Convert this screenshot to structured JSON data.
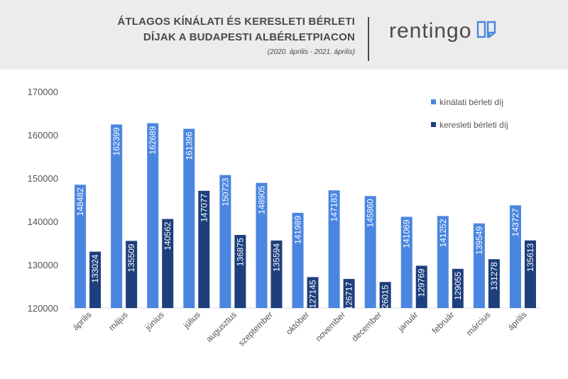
{
  "header": {
    "title_line1": "ÁTLAGOS KÍNÁLATI ÉS KERESLETI BÉRLETI",
    "title_line2": "DÍJAK A BUDAPESTI ALBÉRLETPIACON",
    "subtitle": "(2020. április - 2021. április)",
    "logo_text": "rentingo",
    "logo_icon": "book-icon"
  },
  "colors": {
    "offer": "#4a86e0",
    "demand": "#1d3f7d",
    "axis_text": "#555555",
    "header_bg": "#ececec"
  },
  "chart_data": {
    "type": "bar",
    "categories": [
      "április",
      "május",
      "június",
      "július",
      "augusztus",
      "szeptember",
      "október",
      "november",
      "december",
      "január",
      "február",
      "március",
      "április"
    ],
    "series": [
      {
        "name": "kínálati bérleti díj",
        "color": "#4a86e0",
        "values": [
          148482,
          162399,
          162689,
          161396,
          150723,
          148905,
          141989,
          147183,
          145860,
          141069,
          141252,
          139549,
          143727
        ]
      },
      {
        "name": "keresleti bérleti díj",
        "color": "#1d3f7d",
        "values": [
          133024,
          135509,
          140562,
          147077,
          136875,
          135594,
          127145,
          126717,
          126015,
          129769,
          129055,
          131278,
          135613
        ]
      }
    ],
    "ylim": [
      120000,
      170000
    ],
    "yticks": [
      120000,
      130000,
      140000,
      150000,
      160000,
      170000
    ],
    "grid": false,
    "legend_position": "top-right",
    "data_labels": "rotated-inside-bar"
  }
}
